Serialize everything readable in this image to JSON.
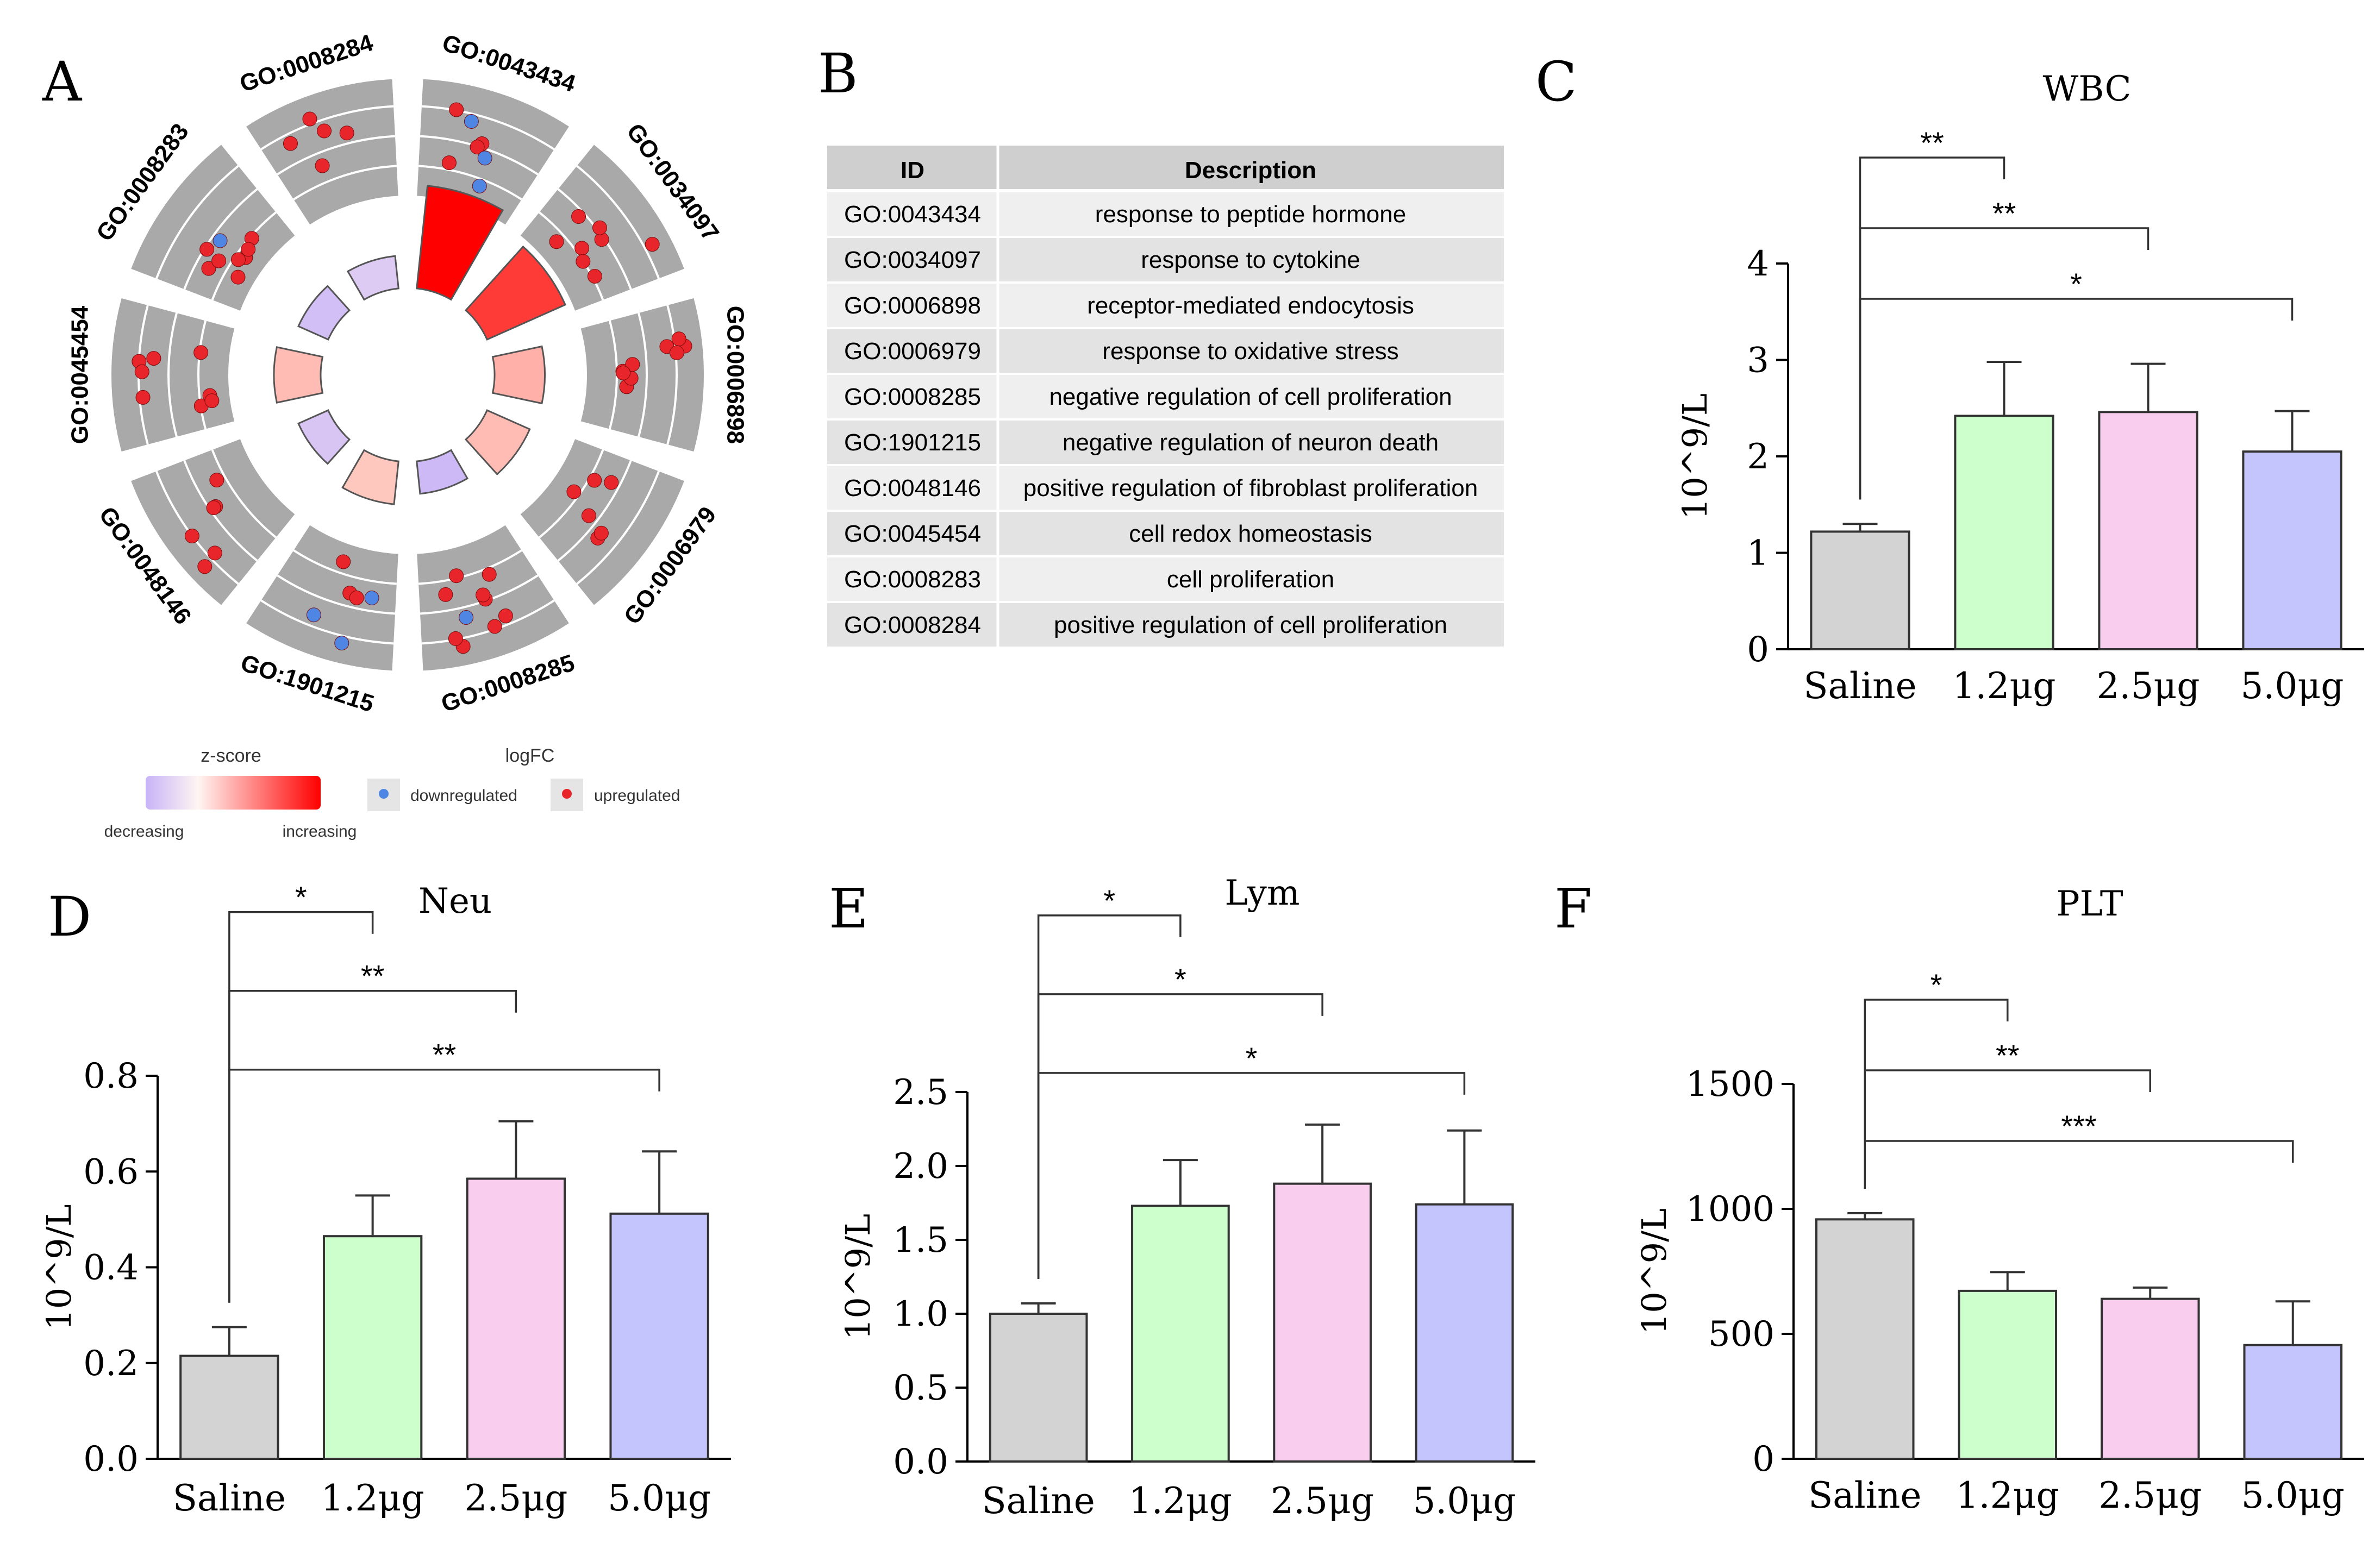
{
  "panel_letters": [
    "A",
    "B",
    "C",
    "D",
    "E",
    "F"
  ],
  "colors": {
    "saline": "#d3d3d3",
    "dose_low": "#ccffcc",
    "dose_mid": "#f9cdee",
    "dose_high": "#c5c5fd",
    "upregulated": "#e8252b",
    "downregulated": "#4f86e3",
    "track_gray": "#a9a9a9",
    "increasing": "#ff0000",
    "decreasing": "#c7b3f7",
    "table_header": "#cfcfcf",
    "table_row_a": "#efefef",
    "table_row_b": "#e3e3e3"
  },
  "go_circle": {
    "terms": [
      {
        "id": "GO:0043434",
        "up": 4,
        "down": 3,
        "zscore": 1.0
      },
      {
        "id": "GO:0034097",
        "up": 8,
        "down": 0,
        "zscore": 0.75
      },
      {
        "id": "GO:0006898",
        "up": 9,
        "down": 0,
        "zscore": 0.25
      },
      {
        "id": "GO:0006979",
        "up": 6,
        "down": 0,
        "zscore": 0.2
      },
      {
        "id": "GO:0008285",
        "up": 9,
        "down": 1,
        "zscore": -0.45
      },
      {
        "id": "GO:1901215",
        "up": 3,
        "down": 3,
        "zscore": 0.15
      },
      {
        "id": "GO:0048146",
        "up": 6,
        "down": 0,
        "zscore": -0.35
      },
      {
        "id": "GO:0045454",
        "up": 8,
        "down": 0,
        "zscore": 0.2
      },
      {
        "id": "GO:0008283",
        "up": 8,
        "down": 1,
        "zscore": -0.4
      },
      {
        "id": "GO:0008284",
        "up": 5,
        "down": 0,
        "zscore": -0.3
      }
    ],
    "legend": {
      "zscore_title": "z-score",
      "decreasing": "decreasing",
      "increasing": "increasing",
      "logfc_title": "logFC",
      "down_label": "downregulated",
      "up_label": "upregulated"
    }
  },
  "go_table": {
    "headers": [
      "ID",
      "Description"
    ],
    "rows": [
      [
        "GO:0043434",
        "response to peptide hormone"
      ],
      [
        "GO:0034097",
        "response to cytokine"
      ],
      [
        "GO:0006898",
        "receptor-mediated endocytosis"
      ],
      [
        "GO:0006979",
        "response to oxidative stress"
      ],
      [
        "GO:0008285",
        "negative regulation of cell proliferation"
      ],
      [
        "GO:1901215",
        "negative regulation of neuron death"
      ],
      [
        "GO:0048146",
        "positive regulation of fibroblast proliferation"
      ],
      [
        "GO:0045454",
        "cell redox homeostasis"
      ],
      [
        "GO:0008283",
        "cell proliferation"
      ],
      [
        "GO:0008284",
        "positive regulation of cell proliferation"
      ]
    ]
  },
  "chart_data": [
    {
      "panel": "C",
      "type": "bar",
      "title": "WBC",
      "ylabel": "10^9/L",
      "categories": [
        "Saline",
        "1.2μg",
        "2.5μg",
        "5.0μg"
      ],
      "values": [
        1.22,
        2.42,
        2.46,
        2.05
      ],
      "errors": [
        0.08,
        0.56,
        0.5,
        0.42
      ],
      "ylim": [
        0,
        4
      ],
      "yticks": [
        0,
        1,
        2,
        3,
        4
      ],
      "ytick_labels": [
        "0",
        "1",
        "2",
        "3",
        "4"
      ],
      "significance": [
        {
          "from": 0,
          "to": 1,
          "label": "**"
        },
        {
          "from": 0,
          "to": 2,
          "label": "**"
        },
        {
          "from": 0,
          "to": 3,
          "label": "*"
        }
      ]
    },
    {
      "panel": "D",
      "type": "bar",
      "title": "Neu",
      "ylabel": "10^9/L",
      "categories": [
        "Saline",
        "1.2μg",
        "2.5μg",
        "5.0μg"
      ],
      "values": [
        0.215,
        0.465,
        0.585,
        0.512
      ],
      "errors": [
        0.06,
        0.085,
        0.12,
        0.13
      ],
      "ylim": [
        0,
        0.8
      ],
      "yticks": [
        0,
        0.2,
        0.4,
        0.6,
        0.8
      ],
      "ytick_labels": [
        "0.0",
        "0.2",
        "0.4",
        "0.6",
        "0.8"
      ],
      "significance": [
        {
          "from": 0,
          "to": 1,
          "label": "*"
        },
        {
          "from": 0,
          "to": 2,
          "label": "**"
        },
        {
          "from": 0,
          "to": 3,
          "label": "**"
        }
      ]
    },
    {
      "panel": "E",
      "type": "bar",
      "title": "Lym",
      "ylabel": "10^9/L",
      "categories": [
        "Saline",
        "1.2μg",
        "2.5μg",
        "5.0μg"
      ],
      "values": [
        1.0,
        1.73,
        1.88,
        1.74
      ],
      "errors": [
        0.07,
        0.31,
        0.4,
        0.5
      ],
      "ylim": [
        0,
        2.5
      ],
      "yticks": [
        0,
        0.5,
        1,
        1.5,
        2,
        2.5
      ],
      "ytick_labels": [
        "0.0",
        "0.5",
        "1.0",
        "1.5",
        "2.0",
        "2.5"
      ],
      "significance": [
        {
          "from": 0,
          "to": 1,
          "label": "*"
        },
        {
          "from": 0,
          "to": 2,
          "label": "*"
        },
        {
          "from": 0,
          "to": 3,
          "label": "*"
        }
      ]
    },
    {
      "panel": "F",
      "type": "bar",
      "title": "PLT",
      "ylabel": "10^9/L",
      "categories": [
        "Saline",
        "1.2μg",
        "2.5μg",
        "5.0μg"
      ],
      "values": [
        958,
        672,
        640,
        455
      ],
      "errors": [
        25,
        75,
        45,
        175
      ],
      "ylim": [
        0,
        1500
      ],
      "yticks": [
        0,
        500,
        1000,
        1500
      ],
      "ytick_labels": [
        "0",
        "500",
        "1000",
        "1500"
      ],
      "significance": [
        {
          "from": 0,
          "to": 1,
          "label": "*"
        },
        {
          "from": 0,
          "to": 2,
          "label": "**"
        },
        {
          "from": 0,
          "to": 3,
          "label": "***"
        }
      ]
    }
  ]
}
